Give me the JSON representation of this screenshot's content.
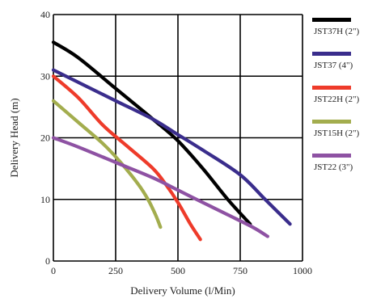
{
  "chart_data": {
    "type": "line",
    "xlabel": "Delivery Volume (l/Min)",
    "ylabel": "Delivery Head (m)",
    "xlim": [
      0,
      1000
    ],
    "ylim": [
      0,
      40
    ],
    "xticks": [
      "0",
      "250",
      "500",
      "750",
      "1000"
    ],
    "yticks": [
      "0",
      "10",
      "20",
      "30",
      "40"
    ],
    "grid": true,
    "legend_position": "right",
    "series": [
      {
        "name": "JST37H (2\")",
        "color": "#000000",
        "points": [
          [
            0,
            35.5
          ],
          [
            100,
            33
          ],
          [
            250,
            28
          ],
          [
            400,
            23
          ],
          [
            500,
            19.5
          ],
          [
            600,
            15
          ],
          [
            700,
            10
          ],
          [
            790,
            6
          ]
        ]
      },
      {
        "name": "JST37 (4\")",
        "color": "#3a2d8c",
        "points": [
          [
            0,
            31
          ],
          [
            100,
            29
          ],
          [
            250,
            26
          ],
          [
            400,
            23
          ],
          [
            500,
            20.5
          ],
          [
            600,
            18
          ],
          [
            750,
            14
          ],
          [
            850,
            10
          ],
          [
            950,
            6
          ]
        ]
      },
      {
        "name": "JST22H (2\")",
        "color": "#ee3b2a",
        "points": [
          [
            0,
            30
          ],
          [
            100,
            26.5
          ],
          [
            200,
            22
          ],
          [
            300,
            18.5
          ],
          [
            400,
            15
          ],
          [
            450,
            12.5
          ],
          [
            500,
            9.5
          ],
          [
            550,
            6
          ],
          [
            590,
            3.5
          ]
        ]
      },
      {
        "name": "JST15H (2\")",
        "color": "#a3ad4e",
        "points": [
          [
            0,
            26
          ],
          [
            100,
            22.5
          ],
          [
            200,
            19
          ],
          [
            270,
            16
          ],
          [
            340,
            12.5
          ],
          [
            380,
            10
          ],
          [
            410,
            7.5
          ],
          [
            430,
            5.5
          ]
        ]
      },
      {
        "name": "JST22 (3\")",
        "color": "#8e52a3",
        "points": [
          [
            0,
            20
          ],
          [
            100,
            18.5
          ],
          [
            250,
            16
          ],
          [
            400,
            13.5
          ],
          [
            500,
            11.5
          ],
          [
            600,
            9.5
          ],
          [
            700,
            7.5
          ],
          [
            800,
            5.5
          ],
          [
            860,
            4
          ]
        ]
      }
    ]
  }
}
